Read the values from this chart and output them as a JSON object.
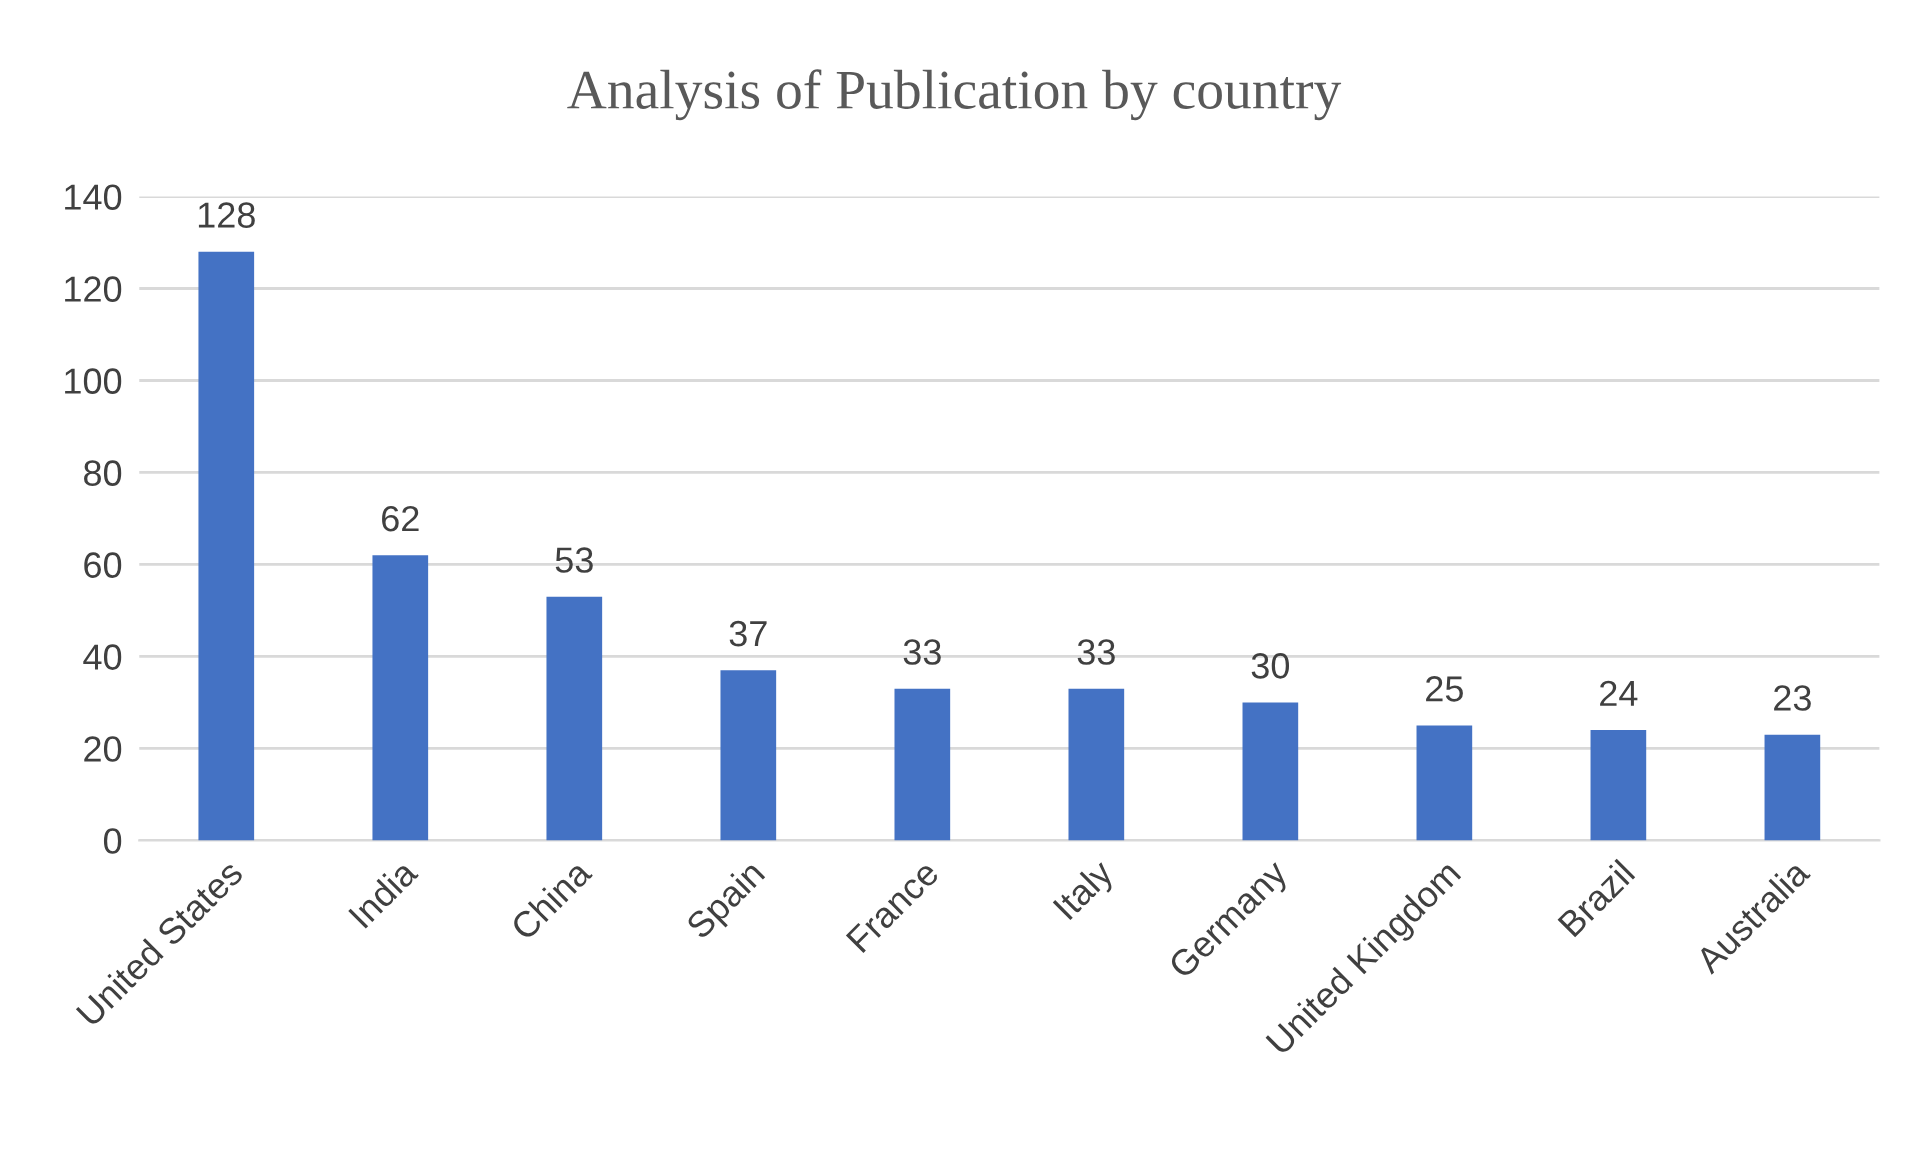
{
  "chart_data": {
    "type": "bar",
    "title": "Analysis of Publication by country",
    "categories": [
      "United States",
      "India",
      "China",
      "Spain",
      "France",
      "Italy",
      "Germany",
      "United Kingdom",
      "Brazil",
      "Australia"
    ],
    "values": [
      128,
      62,
      53,
      37,
      33,
      33,
      30,
      25,
      24,
      23
    ],
    "color": "#4472c4",
    "ylim": [
      0,
      140
    ],
    "yticks": [
      0,
      20,
      40,
      60,
      80,
      100,
      120,
      140
    ],
    "grid": "y",
    "data_labels": true
  }
}
